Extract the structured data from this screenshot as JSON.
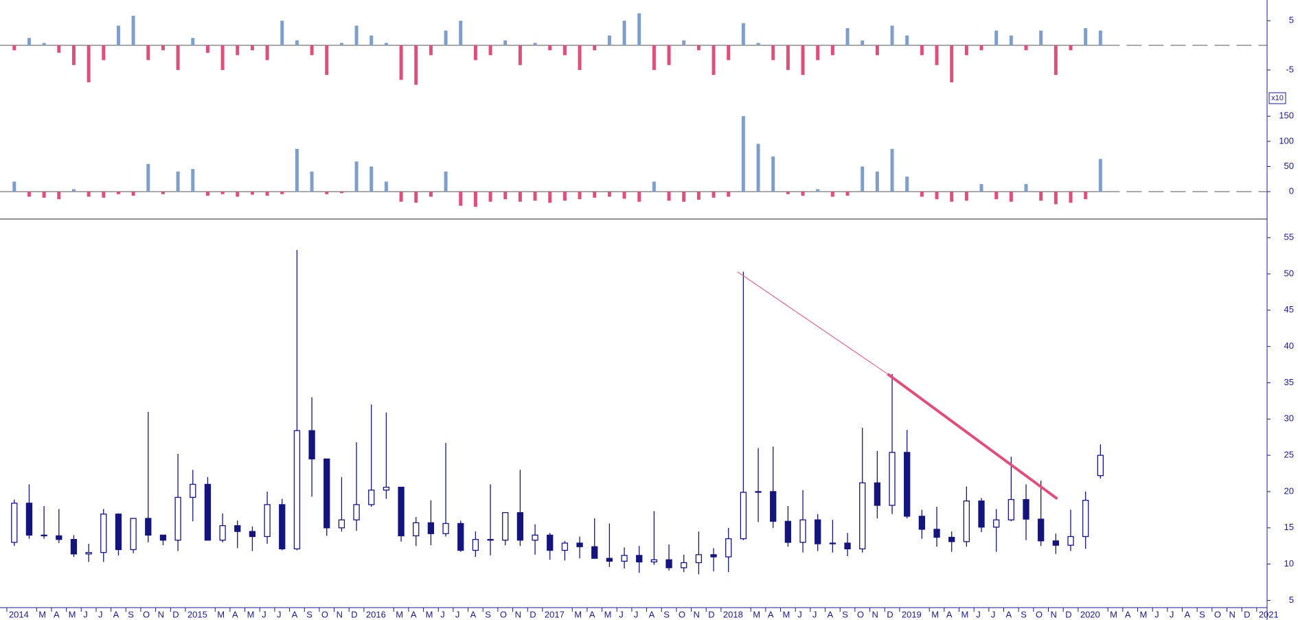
{
  "chart_data": [
    {
      "type": "bar",
      "positive_color": "#7f9fca",
      "negative_color": "#de4f7c",
      "x": [
        0.5,
        1.5,
        2.5,
        3.5,
        4.5,
        5.5,
        6.5,
        7.5,
        8.5,
        9.5,
        10.5,
        11.5,
        12.5,
        13.5,
        14.5,
        15.5,
        16.5,
        17.5,
        18.5,
        19.5,
        20.5,
        21.5,
        22.5,
        23.5,
        24.5,
        25.5,
        26.5,
        27.5,
        28.5,
        29.5,
        30.5,
        31.5,
        32.5,
        33.5,
        34.5,
        35.5,
        36.5,
        37.5,
        38.5,
        39.5,
        40.5,
        41.5,
        42.5,
        43.5,
        44.5,
        45.5,
        46.5,
        47.5,
        48.5,
        49.5,
        50.5,
        51.5,
        52.5,
        53.5,
        54.5,
        55.5,
        56.5,
        57.5,
        58.5,
        59.5,
        60.5,
        61.5,
        62.5,
        63.5,
        64.5,
        65.5,
        66.5,
        67.5,
        68.5,
        69.5,
        70.5,
        71.5,
        72.5,
        73.5
      ],
      "values": [
        -1,
        1.5,
        0.5,
        -1.5,
        -4,
        -7.5,
        -3,
        4,
        6,
        -3,
        -1,
        -5,
        1.5,
        -1.5,
        -5,
        -2,
        -1,
        -3,
        5,
        1,
        -2,
        -6,
        0.5,
        4,
        2,
        0.5,
        -7,
        -8,
        -2,
        3,
        5,
        -3,
        -2,
        1,
        -4,
        0.5,
        -1,
        -2,
        -5,
        -1,
        2,
        5,
        6.5,
        -5,
        -4,
        1,
        -1,
        -6,
        -3,
        4.5,
        0.5,
        -3,
        -5,
        -6,
        -3,
        -2,
        3.5,
        1,
        -2,
        4,
        2,
        -2,
        -4,
        -7.5,
        -2,
        -1,
        3,
        2,
        -1,
        3,
        -6,
        -1,
        3.5,
        3
      ],
      "xlim": [
        -0.46,
        84.7
      ],
      "ylim": [
        -10.3,
        9.2
      ],
      "yticks": [
        -5,
        5
      ]
    },
    {
      "type": "bar",
      "positive_color": "#7f9fca",
      "negative_color": "#de4f7c",
      "scale_label": "x10",
      "x": [
        0.5,
        1.5,
        2.5,
        3.5,
        4.5,
        5.5,
        6.5,
        7.5,
        8.5,
        9.5,
        10.5,
        11.5,
        12.5,
        13.5,
        14.5,
        15.5,
        16.5,
        17.5,
        18.5,
        19.5,
        20.5,
        21.5,
        22.5,
        23.5,
        24.5,
        25.5,
        26.5,
        27.5,
        28.5,
        29.5,
        30.5,
        31.5,
        32.5,
        33.5,
        34.5,
        35.5,
        36.5,
        37.5,
        38.5,
        39.5,
        40.5,
        41.5,
        42.5,
        43.5,
        44.5,
        45.5,
        46.5,
        47.5,
        48.5,
        49.5,
        50.5,
        51.5,
        52.5,
        53.5,
        54.5,
        55.5,
        56.5,
        57.5,
        58.5,
        59.5,
        60.5,
        61.5,
        62.5,
        63.5,
        64.5,
        65.5,
        66.5,
        67.5,
        68.5,
        69.5,
        70.5,
        71.5,
        72.5,
        73.5
      ],
      "values": [
        20,
        -10,
        -12,
        -15,
        5,
        -10,
        -12,
        -5,
        -8,
        55,
        -5,
        40,
        45,
        -8,
        -5,
        -10,
        -6,
        -8,
        -5,
        85,
        40,
        -5,
        -3,
        60,
        50,
        20,
        -20,
        -22,
        -10,
        40,
        -28,
        -30,
        -20,
        -15,
        -20,
        -18,
        -22,
        -18,
        -15,
        -12,
        -10,
        -14,
        -20,
        20,
        -18,
        -20,
        -16,
        -12,
        -10,
        150,
        95,
        70,
        -5,
        -8,
        5,
        -10,
        -8,
        50,
        40,
        85,
        30,
        -10,
        -15,
        -20,
        -18,
        15,
        -15,
        -20,
        15,
        -18,
        -25,
        -22,
        -15,
        65
      ],
      "xlim": [
        -0.46,
        84.7
      ],
      "ylim": [
        -53,
        183
      ],
      "yticks": [
        0,
        50,
        100,
        150
      ]
    },
    {
      "type": "candlestick",
      "color": "#14147e",
      "trend_color": "#de4f7c",
      "x": [
        0.5,
        1.5,
        2.5,
        3.5,
        4.5,
        5.5,
        6.5,
        7.5,
        8.5,
        9.5,
        10.5,
        11.5,
        12.5,
        13.5,
        14.5,
        15.5,
        16.5,
        17.5,
        18.5,
        19.5,
        20.5,
        21.5,
        22.5,
        23.5,
        24.5,
        25.5,
        26.5,
        27.5,
        28.5,
        29.5,
        30.5,
        31.5,
        32.5,
        33.5,
        34.5,
        35.5,
        36.5,
        37.5,
        38.5,
        39.5,
        40.5,
        41.5,
        42.5,
        43.5,
        44.5,
        45.5,
        46.5,
        47.5,
        48.5,
        49.5,
        50.5,
        51.5,
        52.5,
        53.5,
        54.5,
        55.5,
        56.5,
        57.5,
        58.5,
        59.5,
        60.5,
        61.5,
        62.5,
        63.5,
        64.5,
        65.5,
        66.5,
        67.5,
        68.5,
        69.5,
        70.5,
        71.5,
        72.5,
        73.5
      ],
      "open": [
        13,
        18.4,
        14,
        13.9,
        13.4,
        11.4,
        11.6,
        16.9,
        12,
        16.3,
        14,
        13.3,
        19.2,
        21,
        13.3,
        15.3,
        14.5,
        13.8,
        18.2,
        12.1,
        28.4,
        24.5,
        15,
        16.1,
        18.2,
        20.2,
        20.6,
        13.9,
        15.7,
        14.2,
        15.6,
        11.9,
        13.4,
        13.3,
        17.1,
        13.3,
        14,
        11.9,
        12.9,
        12.4,
        10.8,
        10.4,
        11.2,
        10.3,
        10.6,
        9.5,
        10.2,
        11.3,
        11,
        13.5,
        19.9,
        20,
        15.9,
        13,
        16.1,
        12.8,
        12.9,
        12.1,
        21.2,
        18.1,
        25.4,
        16.6,
        14.8,
        13.7,
        13.1,
        18.7,
        15.1,
        16.1,
        18.9,
        16.2,
        13.2,
        12.6,
        13.8,
        22.2
      ],
      "high": [
        18.9,
        21,
        18,
        17.6,
        14,
        12.8,
        17.6,
        17,
        16.3,
        31,
        14,
        25.2,
        23,
        22,
        17,
        16,
        15.2,
        20,
        19,
        53.3,
        33,
        24.5,
        22,
        26.8,
        32,
        30.9,
        20.6,
        16.5,
        18.8,
        26.7,
        16,
        14.5,
        21,
        17,
        23,
        15.5,
        14.3,
        13.2,
        13.8,
        16.3,
        15.6,
        12.3,
        12.5,
        17.3,
        12.7,
        11.3,
        14.5,
        12.2,
        15,
        50.3,
        26,
        26.2,
        18,
        20.2,
        16.9,
        16.1,
        14.3,
        28.8,
        25.6,
        36.2,
        28.5,
        17.5,
        17.9,
        14.5,
        20.7,
        19.1,
        17.6,
        24.8,
        21,
        21.5,
        14.2,
        17.5,
        20,
        26.5
      ],
      "low": [
        12.5,
        13.5,
        13.5,
        12.9,
        11,
        10.3,
        10.3,
        11.2,
        11.5,
        13,
        12.6,
        11.8,
        15.9,
        13.3,
        13,
        12.2,
        11.8,
        12.8,
        11.9,
        11.9,
        19.3,
        13.9,
        14.5,
        14.6,
        17.9,
        19,
        13.1,
        12.5,
        12.6,
        13.8,
        11.7,
        11,
        11.2,
        12.6,
        12.5,
        11.3,
        10.6,
        10.5,
        10.8,
        10.8,
        9.6,
        9.4,
        8.8,
        9.9,
        9.1,
        8.9,
        8.6,
        9,
        8.9,
        13.3,
        15.8,
        15,
        12.4,
        11.6,
        11.8,
        11.6,
        11.1,
        11.6,
        16.3,
        16.9,
        16.3,
        13.5,
        12.4,
        11.7,
        12.4,
        14.4,
        11.7,
        15.9,
        13.3,
        12.5,
        11.4,
        11.8,
        12.1,
        21.8
      ],
      "close": [
        18.4,
        14,
        13.9,
        13.4,
        11.4,
        11.6,
        16.9,
        12,
        16.3,
        14,
        13.3,
        19.2,
        21,
        13.3,
        15.3,
        14.5,
        13.8,
        18.2,
        12.1,
        28.4,
        24.5,
        15,
        16.1,
        18.2,
        20.2,
        20.6,
        13.9,
        15.7,
        14.2,
        15.6,
        11.9,
        13.4,
        13.3,
        17.1,
        13.3,
        14,
        11.9,
        12.9,
        12.4,
        10.8,
        10.4,
        11.2,
        10.3,
        10.6,
        9.5,
        10.2,
        11.3,
        11,
        13.5,
        19.9,
        20,
        15.9,
        13,
        16.1,
        12.8,
        12.9,
        12.1,
        21.2,
        18.1,
        25.4,
        16.6,
        14.8,
        13.7,
        13.1,
        18.7,
        15.1,
        16.1,
        18.9,
        16.2,
        13.2,
        12.6,
        13.8,
        18.8,
        25
      ],
      "trendlines": [
        {
          "x": [
            49.1,
            59.2
          ],
          "y": [
            50.3,
            36.2
          ]
        },
        {
          "x": [
            59.2,
            70.6
          ],
          "y": [
            36.2,
            19
          ]
        }
      ],
      "xlim": [
        -0.46,
        84.7
      ],
      "ylim": [
        4,
        57
      ],
      "yticks": [
        5,
        10,
        15,
        20,
        25,
        30,
        35,
        40,
        45,
        50,
        55
      ],
      "xticks": [
        {
          "value": 0,
          "label": "2014"
        },
        {
          "value": 2,
          "label": "M"
        },
        {
          "value": 3,
          "label": "A"
        },
        {
          "value": 4,
          "label": "M"
        },
        {
          "value": 5,
          "label": "J"
        },
        {
          "value": 6,
          "label": "J"
        },
        {
          "value": 7,
          "label": "A"
        },
        {
          "value": 8,
          "label": "S"
        },
        {
          "value": 9,
          "label": "O"
        },
        {
          "value": 10,
          "label": "N"
        },
        {
          "value": 11,
          "label": "D"
        },
        {
          "value": 12,
          "label": "2015"
        },
        {
          "value": 14,
          "label": "M"
        },
        {
          "value": 15,
          "label": "A"
        },
        {
          "value": 16,
          "label": "M"
        },
        {
          "value": 17,
          "label": "J"
        },
        {
          "value": 18,
          "label": "J"
        },
        {
          "value": 19,
          "label": "A"
        },
        {
          "value": 20,
          "label": "S"
        },
        {
          "value": 21,
          "label": "O"
        },
        {
          "value": 22,
          "label": "N"
        },
        {
          "value": 23,
          "label": "D"
        },
        {
          "value": 24,
          "label": "2016"
        },
        {
          "value": 26,
          "label": "M"
        },
        {
          "value": 27,
          "label": "A"
        },
        {
          "value": 28,
          "label": "M"
        },
        {
          "value": 29,
          "label": "J"
        },
        {
          "value": 30,
          "label": "J"
        },
        {
          "value": 31,
          "label": "A"
        },
        {
          "value": 32,
          "label": "S"
        },
        {
          "value": 33,
          "label": "O"
        },
        {
          "value": 34,
          "label": "N"
        },
        {
          "value": 35,
          "label": "D"
        },
        {
          "value": 36,
          "label": "2017"
        },
        {
          "value": 38,
          "label": "M"
        },
        {
          "value": 39,
          "label": "A"
        },
        {
          "value": 40,
          "label": "M"
        },
        {
          "value": 41,
          "label": "J"
        },
        {
          "value": 42,
          "label": "J"
        },
        {
          "value": 43,
          "label": "A"
        },
        {
          "value": 44,
          "label": "S"
        },
        {
          "value": 45,
          "label": "O"
        },
        {
          "value": 46,
          "label": "N"
        },
        {
          "value": 47,
          "label": "D"
        },
        {
          "value": 48,
          "label": "2018"
        },
        {
          "value": 50,
          "label": "M"
        },
        {
          "value": 51,
          "label": "A"
        },
        {
          "value": 52,
          "label": "M"
        },
        {
          "value": 53,
          "label": "J"
        },
        {
          "value": 54,
          "label": "J"
        },
        {
          "value": 55,
          "label": "A"
        },
        {
          "value": 56,
          "label": "S"
        },
        {
          "value": 57,
          "label": "O"
        },
        {
          "value": 58,
          "label": "N"
        },
        {
          "value": 59,
          "label": "D"
        },
        {
          "value": 60,
          "label": "2019"
        },
        {
          "value": 62,
          "label": "M"
        },
        {
          "value": 63,
          "label": "A"
        },
        {
          "value": 64,
          "label": "M"
        },
        {
          "value": 65,
          "label": "J"
        },
        {
          "value": 66,
          "label": "J"
        },
        {
          "value": 67,
          "label": "A"
        },
        {
          "value": 68,
          "label": "S"
        },
        {
          "value": 69,
          "label": "O"
        },
        {
          "value": 70,
          "label": "N"
        },
        {
          "value": 71,
          "label": "D"
        },
        {
          "value": 72,
          "label": "2020"
        },
        {
          "value": 74,
          "label": "M"
        },
        {
          "value": 75,
          "label": "A"
        },
        {
          "value": 76,
          "label": "M"
        },
        {
          "value": 77,
          "label": "J"
        },
        {
          "value": 78,
          "label": "J"
        },
        {
          "value": 79,
          "label": "A"
        },
        {
          "value": 80,
          "label": "S"
        },
        {
          "value": 81,
          "label": "O"
        },
        {
          "value": 82,
          "label": "N"
        },
        {
          "value": 83,
          "label": "D"
        },
        {
          "value": 84,
          "label": "2021"
        }
      ]
    }
  ]
}
